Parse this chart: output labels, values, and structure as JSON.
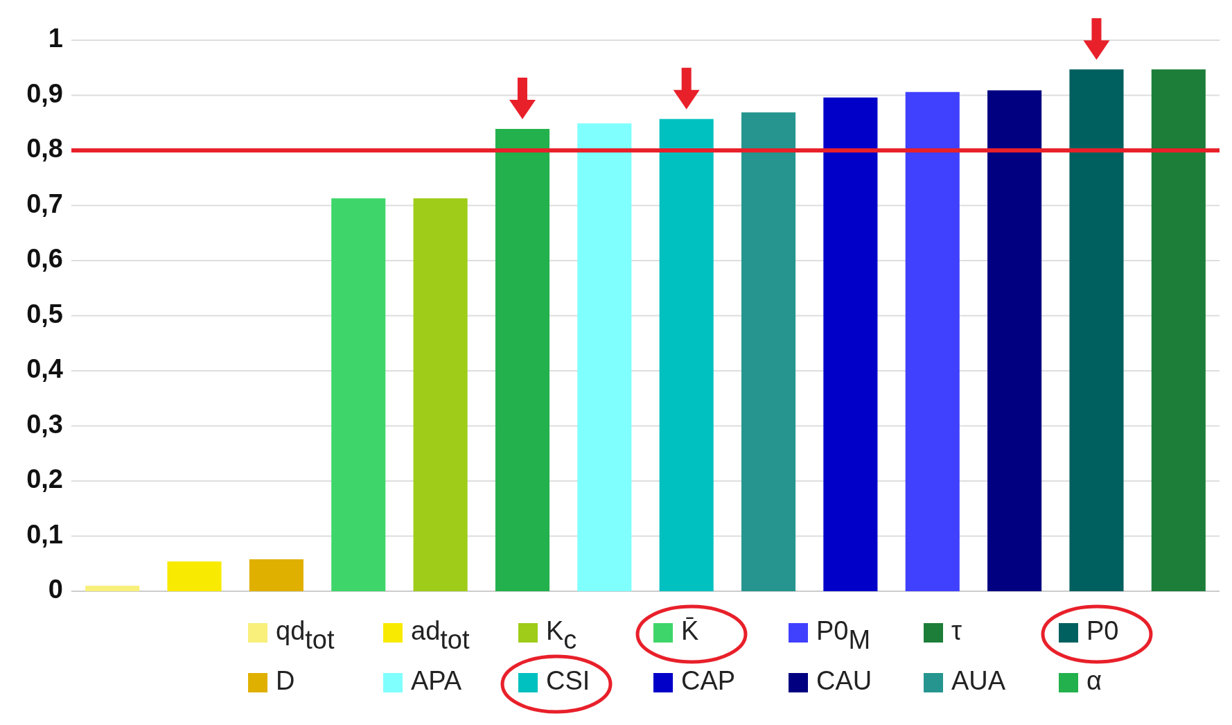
{
  "chart_data": {
    "type": "bar",
    "categories": [
      null,
      null,
      null,
      null,
      null,
      null,
      null,
      null,
      null,
      null,
      null,
      null,
      null,
      null
    ],
    "series": [
      {
        "name": "qd$_{tot}$",
        "color": "#f8f07a",
        "values": [
          0.01,
          null,
          null,
          null,
          null,
          null,
          null,
          null,
          null,
          null,
          null,
          null,
          null,
          null
        ]
      },
      {
        "name": "ad$_{tot}$",
        "color": "#f8ea00",
        "values": [
          null,
          0.054,
          null,
          null,
          null,
          null,
          null,
          null,
          null,
          null,
          null,
          null,
          null,
          null
        ]
      },
      {
        "name": "K$_{c}$",
        "color": "#9fcc18",
        "values": [
          null,
          null,
          null,
          null,
          0.713,
          null,
          null,
          null,
          null,
          null,
          null,
          null,
          null,
          null
        ]
      },
      {
        "name": "K̄",
        "color": "#3ed66a",
        "values": [
          null,
          null,
          null,
          0.713,
          null,
          null,
          null,
          null,
          null,
          null,
          null,
          null,
          null,
          null
        ]
      },
      {
        "name": "P0$_{M}$",
        "color": "#4040ff",
        "values": [
          null,
          null,
          null,
          null,
          null,
          null,
          null,
          null,
          null,
          null,
          0.906,
          null,
          null,
          null
        ]
      },
      {
        "name": "τ",
        "color": "#1c7e38",
        "values": [
          null,
          null,
          null,
          null,
          null,
          null,
          null,
          null,
          null,
          null,
          null,
          null,
          null,
          0.947
        ]
      },
      {
        "name": "P0",
        "color": "#006060",
        "values": [
          null,
          null,
          null,
          null,
          null,
          null,
          null,
          null,
          null,
          null,
          null,
          null,
          0.947,
          null
        ]
      },
      {
        "name": "D",
        "color": "#e0b000",
        "values": [
          null,
          null,
          0.058,
          null,
          null,
          null,
          null,
          null,
          null,
          null,
          null,
          null,
          null,
          null
        ]
      },
      {
        "name": "APA",
        "color": "#80ffff",
        "values": [
          null,
          null,
          null,
          null,
          null,
          null,
          0.849,
          null,
          null,
          null,
          null,
          null,
          null,
          null
        ]
      },
      {
        "name": "CSI",
        "color": "#00c0c0",
        "values": [
          null,
          null,
          null,
          null,
          null,
          null,
          null,
          0.857,
          null,
          null,
          null,
          null,
          null,
          null
        ]
      },
      {
        "name": "CAP",
        "color": "#0000c8",
        "values": [
          null,
          null,
          null,
          null,
          null,
          null,
          null,
          null,
          null,
          0.896,
          null,
          null,
          null,
          null
        ]
      },
      {
        "name": "CAU",
        "color": "#000080",
        "values": [
          null,
          null,
          null,
          null,
          null,
          null,
          null,
          null,
          null,
          null,
          null,
          0.909,
          null,
          null
        ]
      },
      {
        "name": "AUA",
        "color": "#26958f",
        "values": [
          null,
          null,
          null,
          null,
          null,
          null,
          null,
          null,
          0.869,
          null,
          null,
          null,
          null,
          null
        ]
      },
      {
        "name": "α",
        "color": "#22b14c",
        "values": [
          null,
          null,
          null,
          null,
          null,
          0.839,
          null,
          null,
          null,
          null,
          null,
          null,
          null,
          null
        ]
      }
    ],
    "ylim": [
      0,
      1
    ],
    "yticks": [
      0,
      {
        "value": 0.1,
        "label": "0,1"
      },
      {
        "value": 0.2,
        "label": "0,2"
      },
      {
        "value": 0.3,
        "label": "0,3"
      },
      {
        "value": 0.4,
        "label": "0,4"
      },
      {
        "value": 0.5,
        "label": "0,5"
      },
      {
        "value": 0.6,
        "label": "0,6"
      },
      {
        "value": 0.7,
        "label": "0,7"
      },
      {
        "value": 0.8,
        "label": "0,8"
      },
      {
        "value": 0.9,
        "label": "0,9"
      },
      1
    ],
    "grid": "y",
    "ref_lines": [
      {
        "axis": "y",
        "value": 0.8,
        "color": "#e8202a"
      }
    ],
    "legend": "bottom"
  }
}
